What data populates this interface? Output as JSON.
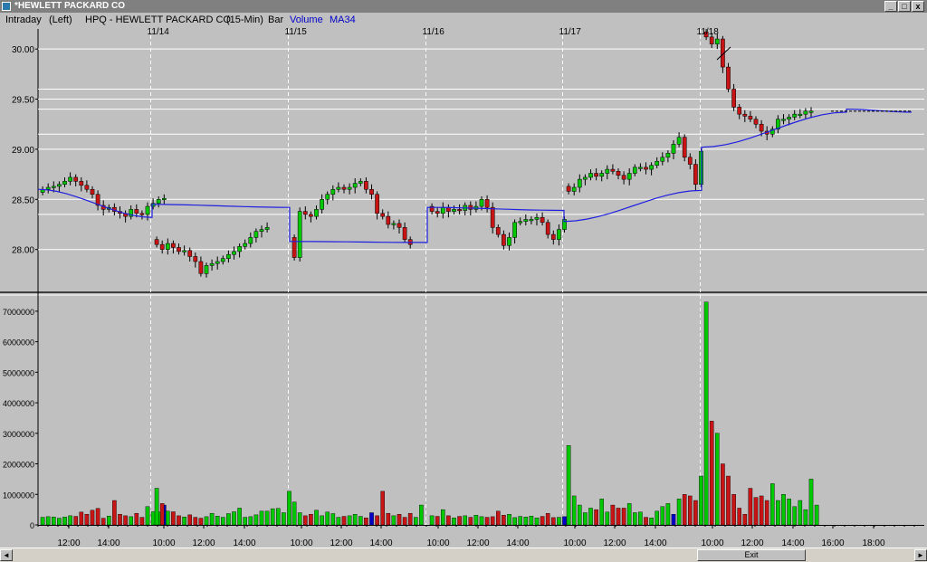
{
  "window": {
    "title": "*HEWLETT PACKARD CO",
    "min_label": "_",
    "max_label": "□",
    "close_label": "x"
  },
  "infobar": {
    "mode": "Intraday",
    "axis_side": "(Left)",
    "symbol": "HPQ - HEWLETT PACKARD CO",
    "interval": "(15-Min)",
    "style": "Bar",
    "study1": "Volume",
    "study2": "MA34"
  },
  "scrollbar": {
    "left_arrow": "◄",
    "right_arrow": "►",
    "thumb_label": "Exit"
  },
  "colors": {
    "up": "#00c800",
    "down": "#c81414",
    "neutral_volume": "#0000c8",
    "ma_line": "#2020e0",
    "grid": "#ffffff",
    "background": "#c0c0c0"
  },
  "chart_data": [
    {
      "type": "candlestick",
      "name": "price",
      "ylim": [
        27.6,
        30.2
      ],
      "yticks": [
        "30.00",
        "29.50",
        "29.00",
        "28.50",
        "28.00"
      ],
      "ytick_values": [
        30.0,
        29.5,
        29.0,
        28.5,
        28.0
      ],
      "hlines": [
        28.35,
        29.6,
        29.4,
        29.15
      ],
      "day_labels": [
        "11/14",
        "11/15",
        "11/16",
        "11/17",
        "11/18"
      ],
      "annotation": "arrow near 11/18 open",
      "days": [
        [
          28.6,
          28.62,
          28.63,
          28.65,
          28.68,
          28.72,
          28.68,
          28.64,
          28.6,
          28.55,
          28.44,
          28.4,
          28.42,
          28.38,
          28.36,
          28.33,
          28.4,
          28.36,
          28.35,
          28.43,
          28.46,
          28.5,
          28.51
        ],
        [
          28.05,
          28.0,
          28.06,
          28.02,
          27.98,
          27.99,
          27.93,
          27.88,
          27.76,
          27.84,
          27.86,
          27.88,
          27.91,
          27.95,
          27.98,
          28.03,
          28.06,
          28.12,
          28.18,
          28.2,
          28.22
        ],
        [
          27.92,
          28.38,
          28.35,
          28.33,
          28.4,
          28.5,
          28.55,
          28.6,
          28.62,
          28.6,
          28.62,
          28.66,
          28.68,
          28.6,
          28.55,
          28.36,
          28.33,
          28.25,
          28.26,
          28.22,
          28.1,
          28.05
        ],
        [
          28.38,
          28.36,
          28.42,
          28.38,
          28.4,
          28.39,
          28.44,
          28.4,
          28.43,
          28.5,
          28.42,
          28.22,
          28.15,
          28.04,
          28.12,
          28.27,
          28.28,
          28.3,
          28.3,
          28.32,
          28.27,
          28.15,
          28.1,
          28.2,
          28.3
        ],
        [
          28.58,
          28.62,
          28.7,
          28.72,
          28.76,
          28.73,
          28.76,
          28.8,
          28.78,
          28.74,
          28.7,
          28.76,
          28.82,
          28.82,
          28.8,
          28.84,
          28.88,
          28.92,
          28.96,
          29.05,
          29.12,
          28.92,
          28.85,
          28.65,
          28.98
        ],
        [
          30.12,
          30.05,
          30.1,
          29.82,
          29.6,
          29.42,
          29.35,
          29.33,
          29.3,
          29.25,
          29.18,
          29.15,
          29.2,
          29.3,
          29.3,
          29.32,
          29.35,
          29.35,
          29.38,
          29.38
        ]
      ],
      "ma34": [
        [
          28.6,
          28.32
        ],
        [
          28.45,
          28.42
        ],
        [
          28.08,
          28.07
        ],
        [
          28.42,
          28.39
        ],
        [
          28.28,
          28.59
        ],
        [
          29.02,
          29.37
        ],
        [
          29.4,
          29.37
        ]
      ]
    },
    {
      "type": "bar",
      "name": "volume",
      "ylim": [
        0,
        7500000
      ],
      "yticks": [
        "7000000",
        "6000000",
        "5000000",
        "4000000",
        "3000000",
        "2000000",
        "1000000",
        "0"
      ],
      "ytick_values": [
        7000000,
        6000000,
        5000000,
        4000000,
        3000000,
        2000000,
        1000000,
        0
      ],
      "xticks": [
        "12:00",
        "14:00",
        "10:00",
        "12:00",
        "14:00",
        "10:00",
        "12:00",
        "14:00",
        "10:00",
        "12:00",
        "14:00",
        "10:00",
        "12:00",
        "14:00",
        "10:00",
        "12:00",
        "14:00",
        "16:00",
        "18:00"
      ],
      "day_values": [
        [
          250000,
          270000,
          260000,
          220000,
          260000,
          300000,
          280000,
          420000,
          350000,
          480000,
          540000,
          220000,
          290000,
          800000,
          350000,
          300000,
          270000,
          380000,
          250000,
          600000,
          430000,
          420000,
          650000
        ],
        [
          1200000,
          700000,
          450000,
          430000,
          300000,
          260000,
          330000,
          250000,
          220000,
          270000,
          380000,
          290000,
          250000,
          370000,
          430000,
          550000,
          250000,
          270000,
          330000,
          450000,
          450000,
          530000,
          540000,
          400000,
          1100000
        ],
        [
          750000,
          400000,
          300000,
          350000,
          480000,
          300000,
          420000,
          370000,
          250000,
          280000,
          300000,
          350000,
          280000,
          230000,
          400000,
          300000,
          1100000,
          380000,
          300000,
          350000,
          250000,
          380000,
          250000,
          650000
        ],
        [
          300000,
          280000,
          500000,
          300000,
          230000,
          280000,
          300000,
          250000,
          320000,
          270000,
          250000,
          270000,
          450000,
          320000,
          350000,
          240000,
          280000,
          260000,
          290000,
          230000,
          280000,
          380000,
          240000,
          250000,
          270000
        ],
        [
          2600000,
          950000,
          650000,
          400000,
          550000,
          500000,
          850000,
          420000,
          650000,
          550000,
          550000,
          700000,
          400000,
          420000,
          250000,
          230000,
          450000,
          600000,
          700000,
          350000,
          850000,
          1000000,
          950000,
          800000,
          1600000
        ],
        [
          7300000,
          3400000,
          3000000,
          2000000,
          1600000,
          1000000,
          550000,
          350000,
          1200000,
          900000,
          950000,
          800000,
          1350000,
          800000,
          1000000,
          850000,
          600000,
          800000,
          500000,
          1500000,
          650000
        ]
      ],
      "neutral_bars": [
        "day0 bar23 thin blue near 14:30",
        "day2 bar14 blue",
        "day3 bar24 blue before 11/17",
        "day4 bar19 blue near 14:00"
      ]
    }
  ]
}
